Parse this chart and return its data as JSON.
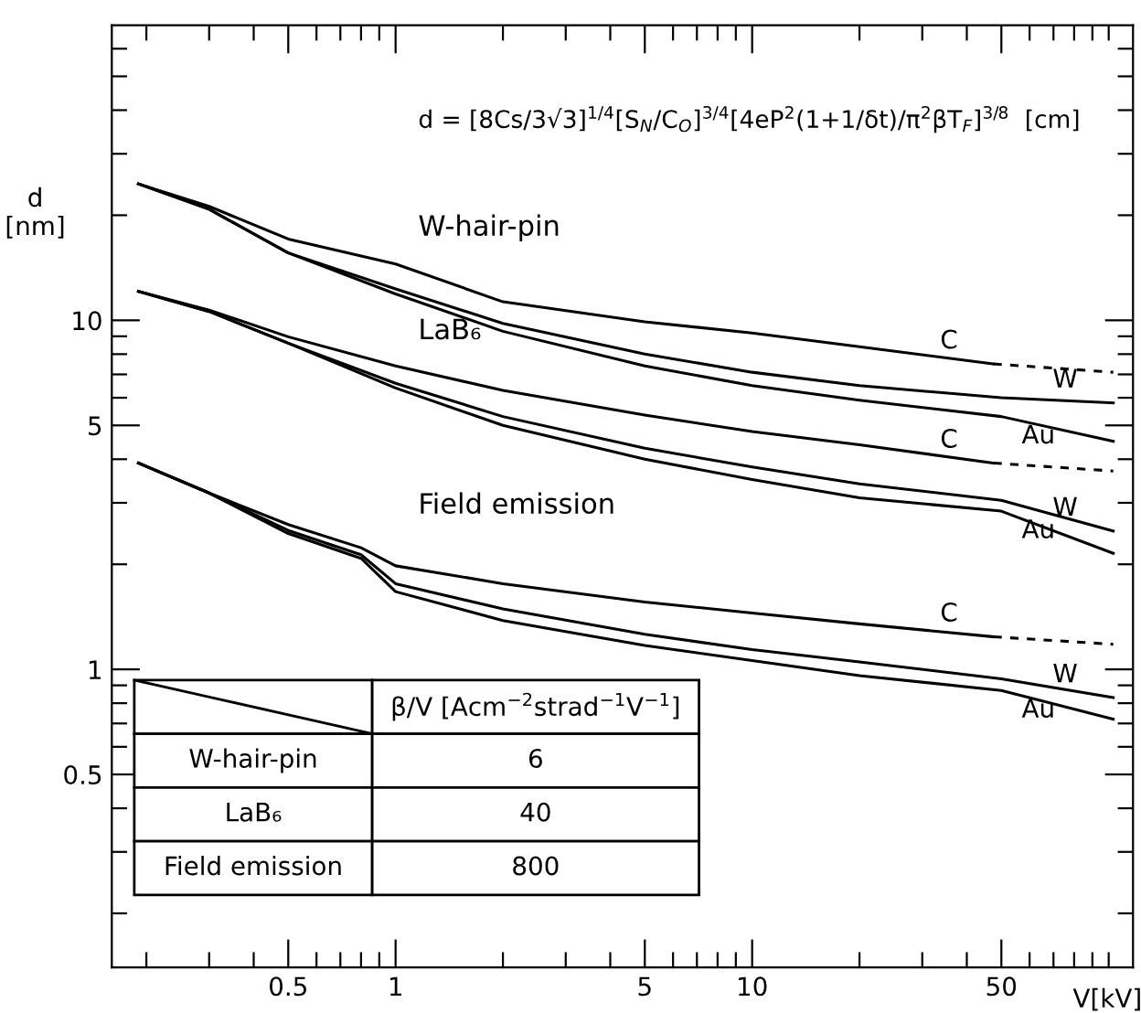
{
  "chart_data": {
    "type": "line",
    "xlabel": "V[kV]",
    "ylabel": "d\n[nm]",
    "log": "xy",
    "grid": false,
    "legend": "right",
    "marker": "none",
    "line_style": "solid",
    "xlim": [
      0.16,
      117
    ],
    "ylim": [
      0.14,
      70
    ],
    "xticks": [
      {
        "value": 0.2,
        "label": null
      },
      {
        "value": 0.3,
        "label": null
      },
      {
        "value": 0.4,
        "label": null
      },
      0.5,
      {
        "value": 0.6,
        "label": null
      },
      {
        "value": 0.7,
        "label": null
      },
      {
        "value": 0.8,
        "label": null
      },
      {
        "value": 0.9,
        "label": null
      },
      1,
      {
        "value": 2,
        "label": null
      },
      {
        "value": 3,
        "label": null
      },
      {
        "value": 4,
        "label": null
      },
      5,
      {
        "value": 6,
        "label": null
      },
      {
        "value": 7,
        "label": null
      },
      {
        "value": 8,
        "label": null
      },
      {
        "value": 9,
        "label": null
      },
      10,
      {
        "value": 20,
        "label": null
      },
      {
        "value": 30,
        "label": null
      },
      {
        "value": 40,
        "label": null
      },
      50,
      {
        "value": 60,
        "label": null
      },
      {
        "value": 70,
        "label": null
      },
      {
        "value": 80,
        "label": null
      },
      {
        "value": 90,
        "label": null
      },
      {
        "value": 100,
        "label": null
      }
    ],
    "yticks": [
      {
        "value": 0.2,
        "label": null
      },
      {
        "value": 0.3,
        "label": null
      },
      {
        "value": 0.4,
        "label": null
      },
      0.5,
      {
        "value": 0.6,
        "label": null
      },
      {
        "value": 0.7,
        "label": null
      },
      {
        "value": 0.8,
        "label": null
      },
      {
        "value": 0.9,
        "label": null
      },
      1,
      {
        "value": 2,
        "label": null
      },
      {
        "value": 3,
        "label": null
      },
      {
        "value": 4,
        "label": null
      },
      5,
      {
        "value": 6,
        "label": null
      },
      {
        "value": 7,
        "label": null
      },
      {
        "value": 8,
        "label": null
      },
      {
        "value": 9,
        "label": null
      },
      10,
      {
        "value": 20,
        "label": null
      },
      {
        "value": 30,
        "label": null
      },
      {
        "value": 40,
        "label": null
      },
      {
        "value": 50,
        "label": null
      },
      {
        "value": 60,
        "label": null
      }
    ],
    "series": [
      {
        "name": "C",
        "color": "#000000",
        "x": [
          0.19,
          0.3,
          0.5,
          1,
          2,
          5,
          10,
          20,
          47.5
        ],
        "values": [
          24.6,
          21.2,
          17.1,
          14.5,
          11.3,
          9.9,
          9.2,
          8.4,
          7.5
        ]
      },
      {
        "color": "#000000",
        "line_style": "dashed",
        "x": [
          47.5,
          103
        ],
        "values": [
          7.5,
          7.1
        ]
      },
      {
        "name": "W",
        "color": "#000000",
        "x": [
          0.19,
          0.3,
          0.5,
          1,
          2,
          5,
          10,
          20,
          50,
          103
        ],
        "values": [
          24.6,
          20.8,
          15.6,
          12.3,
          9.8,
          8.0,
          7.1,
          6.5,
          6.0,
          5.8
        ]
      },
      {
        "name": "Au",
        "color": "#000000",
        "x": [
          0.19,
          0.3,
          0.5,
          1,
          2,
          5,
          10,
          20,
          50,
          103
        ],
        "values": [
          24.6,
          20.8,
          15.6,
          11.9,
          9.3,
          7.4,
          6.5,
          5.9,
          5.3,
          4.5
        ]
      },
      {
        "name": "C",
        "color": "#000000",
        "x": [
          0.19,
          0.3,
          0.5,
          1,
          2,
          5,
          10,
          20,
          47.5
        ],
        "values": [
          12.1,
          10.7,
          8.97,
          7.4,
          6.3,
          5.35,
          4.8,
          4.4,
          3.9
        ]
      },
      {
        "color": "#000000",
        "line_style": "dashed",
        "x": [
          47.5,
          103
        ],
        "values": [
          3.9,
          3.7
        ]
      },
      {
        "name": "W",
        "color": "#000000",
        "x": [
          0.19,
          0.3,
          0.5,
          1,
          2,
          5,
          10,
          20,
          50,
          103
        ],
        "values": [
          12.1,
          10.6,
          8.6,
          6.6,
          5.3,
          4.3,
          3.8,
          3.4,
          3.05,
          2.49
        ]
      },
      {
        "name": "Au",
        "color": "#000000",
        "x": [
          0.19,
          0.3,
          0.5,
          1,
          2,
          5,
          10,
          20,
          50,
          103
        ],
        "values": [
          12.1,
          10.6,
          8.6,
          6.4,
          5.0,
          4.0,
          3.5,
          3.1,
          2.84,
          2.15
        ]
      },
      {
        "name": "C",
        "color": "#000000",
        "x": [
          0.19,
          0.3,
          0.5,
          0.8,
          1,
          2,
          5,
          10,
          20,
          47.5
        ],
        "values": [
          3.9,
          3.2,
          2.6,
          2.23,
          1.98,
          1.76,
          1.56,
          1.45,
          1.35,
          1.24
        ]
      },
      {
        "color": "#000000",
        "line_style": "dashed",
        "x": [
          47.5,
          103
        ],
        "values": [
          1.24,
          1.18
        ]
      },
      {
        "name": "W",
        "color": "#000000",
        "x": [
          0.19,
          0.3,
          0.5,
          0.8,
          1,
          2,
          5,
          10,
          20,
          50,
          103
        ],
        "values": [
          3.9,
          3.2,
          2.5,
          2.13,
          1.76,
          1.49,
          1.26,
          1.14,
          1.05,
          0.94,
          0.83
        ]
      },
      {
        "name": "Au",
        "color": "#000000",
        "x": [
          0.19,
          0.3,
          0.5,
          0.8,
          1,
          2,
          5,
          10,
          20,
          50,
          103
        ],
        "values": [
          3.9,
          3.2,
          2.45,
          2.08,
          1.67,
          1.38,
          1.17,
          1.06,
          0.96,
          0.87,
          0.72
        ]
      }
    ],
    "annotations": [
      "d = [8Cs/3√3]$^{1/4}$[S$_{N}$/C$_{O}$]$^{3/4}$[4eP$^{2}$(1+1/δt)/π$^{2}$βT$_{F}$]$^{3/8}$  [cm]",
      "β/V [Acm$^{−2}$strad$^{−1}$V$^{−1}$]",
      "W-hair-pin",
      "6",
      "LaB₆",
      "40",
      "Field emission",
      "800",
      "W-hair-pin",
      "LaB₆",
      "Field emission"
    ]
  }
}
